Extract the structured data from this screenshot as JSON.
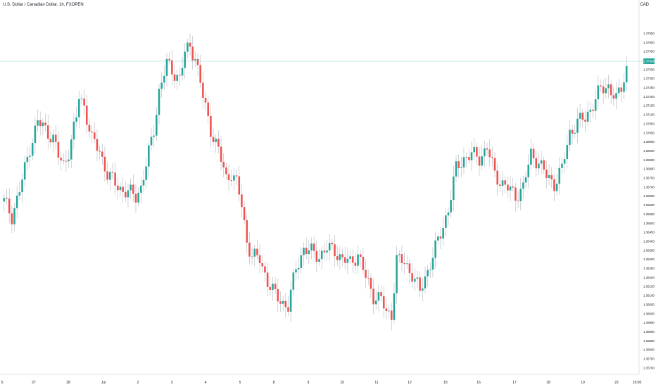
{
  "header": {
    "title": "U.S. Dollar / Canadian Dollar, 1h, FXOPEN",
    "currency": "CAD"
  },
  "price_label": {
    "value": "1.37396"
  },
  "colors": {
    "up": "#26a69a",
    "down": "#ef5350",
    "wick": "#b2b5be",
    "last_line": "#26a69a",
    "axis_text": "#131722"
  },
  "chart_data": {
    "type": "candlestick",
    "title": "U.S. Dollar / Canadian Dollar, 1h, FXOPEN",
    "ylim": [
      1.3568,
      1.3768
    ],
    "y_ticks": [
      "1.37550",
      "1.37500",
      "1.37450",
      "1.37400",
      "1.37350",
      "1.37300",
      "1.37250",
      "1.37200",
      "1.37150",
      "1.37100",
      "1.37050",
      "1.37000",
      "1.36950",
      "1.36900",
      "1.36850",
      "1.36800",
      "1.36750",
      "1.36700",
      "1.36650",
      "1.36600",
      "1.36550",
      "1.36500",
      "1.36450",
      "1.36400",
      "1.36350",
      "1.36300",
      "1.36250",
      "1.36200",
      "1.36150",
      "1.36100",
      "1.36050",
      "1.36000",
      "1.35950",
      "1.35900",
      "1.35850",
      "1.35800",
      "1.35750",
      "1.35700"
    ],
    "x_labels": [
      "5",
      "27",
      "28",
      "Jul",
      "2",
      "3",
      "4",
      "5",
      "8",
      "9",
      "10",
      "11",
      "12",
      "15",
      "16",
      "17",
      "18",
      "19",
      "22",
      "15:00"
    ],
    "last_price": 1.37396,
    "close_path": [
      [
        0,
        1.3662
      ],
      [
        3,
        1.3654
      ],
      [
        6,
        1.3668
      ],
      [
        10,
        1.3692
      ],
      [
        13,
        1.3706
      ],
      [
        16,
        1.3702
      ],
      [
        19,
        1.3697
      ],
      [
        21,
        1.3687
      ],
      [
        23,
        1.3682
      ],
      [
        25,
        1.369
      ],
      [
        28,
        1.3708
      ],
      [
        29,
        1.372
      ],
      [
        31,
        1.3715
      ],
      [
        34,
        1.3696
      ],
      [
        37,
        1.369
      ],
      [
        40,
        1.3677
      ],
      [
        43,
        1.3672
      ],
      [
        46,
        1.3668
      ],
      [
        48,
        1.3667
      ],
      [
        51,
        1.3665
      ],
      [
        53,
        1.367
      ],
      [
        55,
        1.3682
      ],
      [
        58,
        1.3702
      ],
      [
        60,
        1.3723
      ],
      [
        63,
        1.3738
      ],
      [
        66,
        1.3733
      ],
      [
        68,
        1.373
      ],
      [
        70,
        1.3744
      ],
      [
        72,
        1.3748
      ],
      [
        74,
        1.3742
      ],
      [
        77,
        1.372
      ],
      [
        80,
        1.3702
      ],
      [
        83,
        1.369
      ],
      [
        86,
        1.3675
      ],
      [
        88,
        1.3678
      ],
      [
        90,
        1.3672
      ],
      [
        92,
        1.366
      ],
      [
        94,
        1.364
      ],
      [
        96,
        1.3632
      ],
      [
        99,
        1.363
      ],
      [
        102,
        1.3618
      ],
      [
        105,
        1.361
      ],
      [
        108,
        1.3606
      ],
      [
        110,
        1.3604
      ],
      [
        113,
        1.3625
      ],
      [
        116,
        1.3636
      ],
      [
        119,
        1.3634
      ],
      [
        122,
        1.3632
      ],
      [
        125,
        1.3636
      ],
      [
        128,
        1.3635
      ],
      [
        131,
        1.363
      ],
      [
        134,
        1.3628
      ],
      [
        137,
        1.3633
      ],
      [
        140,
        1.362
      ],
      [
        143,
        1.361
      ],
      [
        146,
        1.3608
      ],
      [
        148,
        1.36
      ],
      [
        150,
        1.36
      ],
      [
        152,
        1.363
      ],
      [
        155,
        1.3628
      ],
      [
        158,
        1.3622
      ],
      [
        161,
        1.3612
      ],
      [
        163,
        1.362
      ],
      [
        166,
        1.3632
      ],
      [
        169,
        1.3644
      ],
      [
        172,
        1.3658
      ],
      [
        175,
        1.368
      ],
      [
        178,
        1.3686
      ],
      [
        181,
        1.3688
      ],
      [
        184,
        1.3686
      ],
      [
        187,
        1.3692
      ],
      [
        190,
        1.3677
      ],
      [
        193,
        1.3672
      ],
      [
        196,
        1.3668
      ],
      [
        198,
        1.3665
      ],
      [
        201,
        1.367
      ],
      [
        204,
        1.3688
      ],
      [
        207,
        1.3684
      ],
      [
        210,
        1.3676
      ],
      [
        213,
        1.3672
      ],
      [
        216,
        1.368
      ],
      [
        219,
        1.37
      ],
      [
        222,
        1.3706
      ],
      [
        225,
        1.3708
      ],
      [
        228,
        1.3716
      ],
      [
        231,
        1.3724
      ],
      [
        234,
        1.3726
      ],
      [
        237,
        1.3718
      ],
      [
        239,
        1.3725
      ],
      [
        241,
        1.3736
      ]
    ]
  }
}
